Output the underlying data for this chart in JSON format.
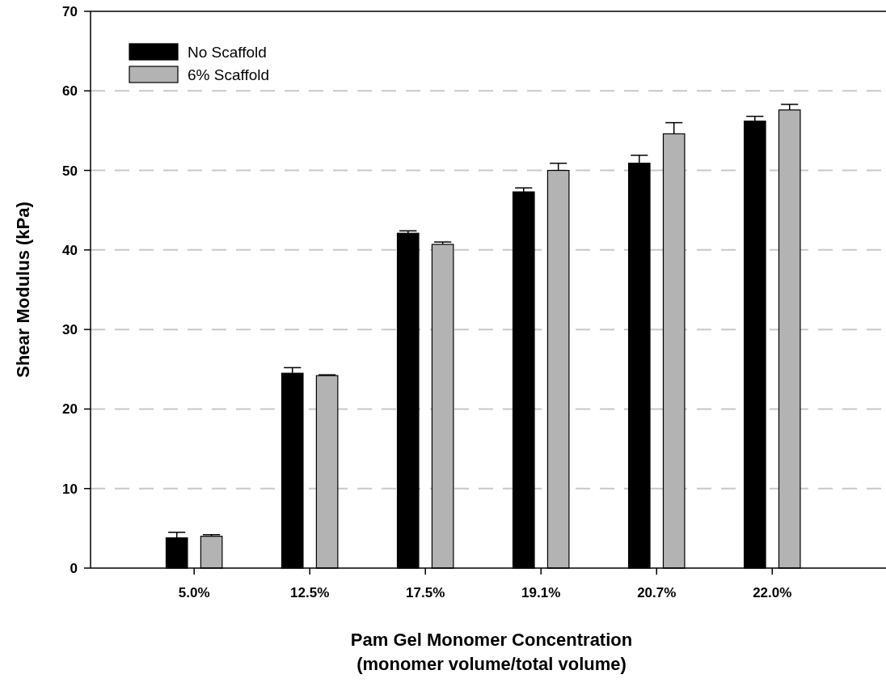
{
  "chart_data": {
    "type": "bar",
    "xlabel": "Pam Gel Monomer Concentration\n(monomer volume/total volume)",
    "ylabel": "Shear Modulus (kPa)",
    "categories": [
      "5.0%",
      "12.5%",
      "17.5%",
      "19.1%",
      "20.7%",
      "22.0%"
    ],
    "series": [
      {
        "name": "No Scaffold",
        "color": "#000000",
        "values": [
          3.8,
          24.5,
          42.1,
          47.3,
          50.9,
          56.2
        ],
        "errors": [
          0.7,
          0.7,
          0.3,
          0.5,
          1.0,
          0.6
        ]
      },
      {
        "name": "6% Scaffold",
        "color": "#b3b3b3",
        "values": [
          4.0,
          24.2,
          40.7,
          50.0,
          54.6,
          57.6
        ],
        "errors": [
          0.2,
          0.1,
          0.3,
          0.9,
          1.4,
          0.7
        ]
      }
    ],
    "ylim": [
      0,
      70
    ],
    "yticks": [
      0,
      10,
      20,
      30,
      40,
      50,
      60,
      70
    ],
    "grid": "y",
    "legend": "top left"
  }
}
